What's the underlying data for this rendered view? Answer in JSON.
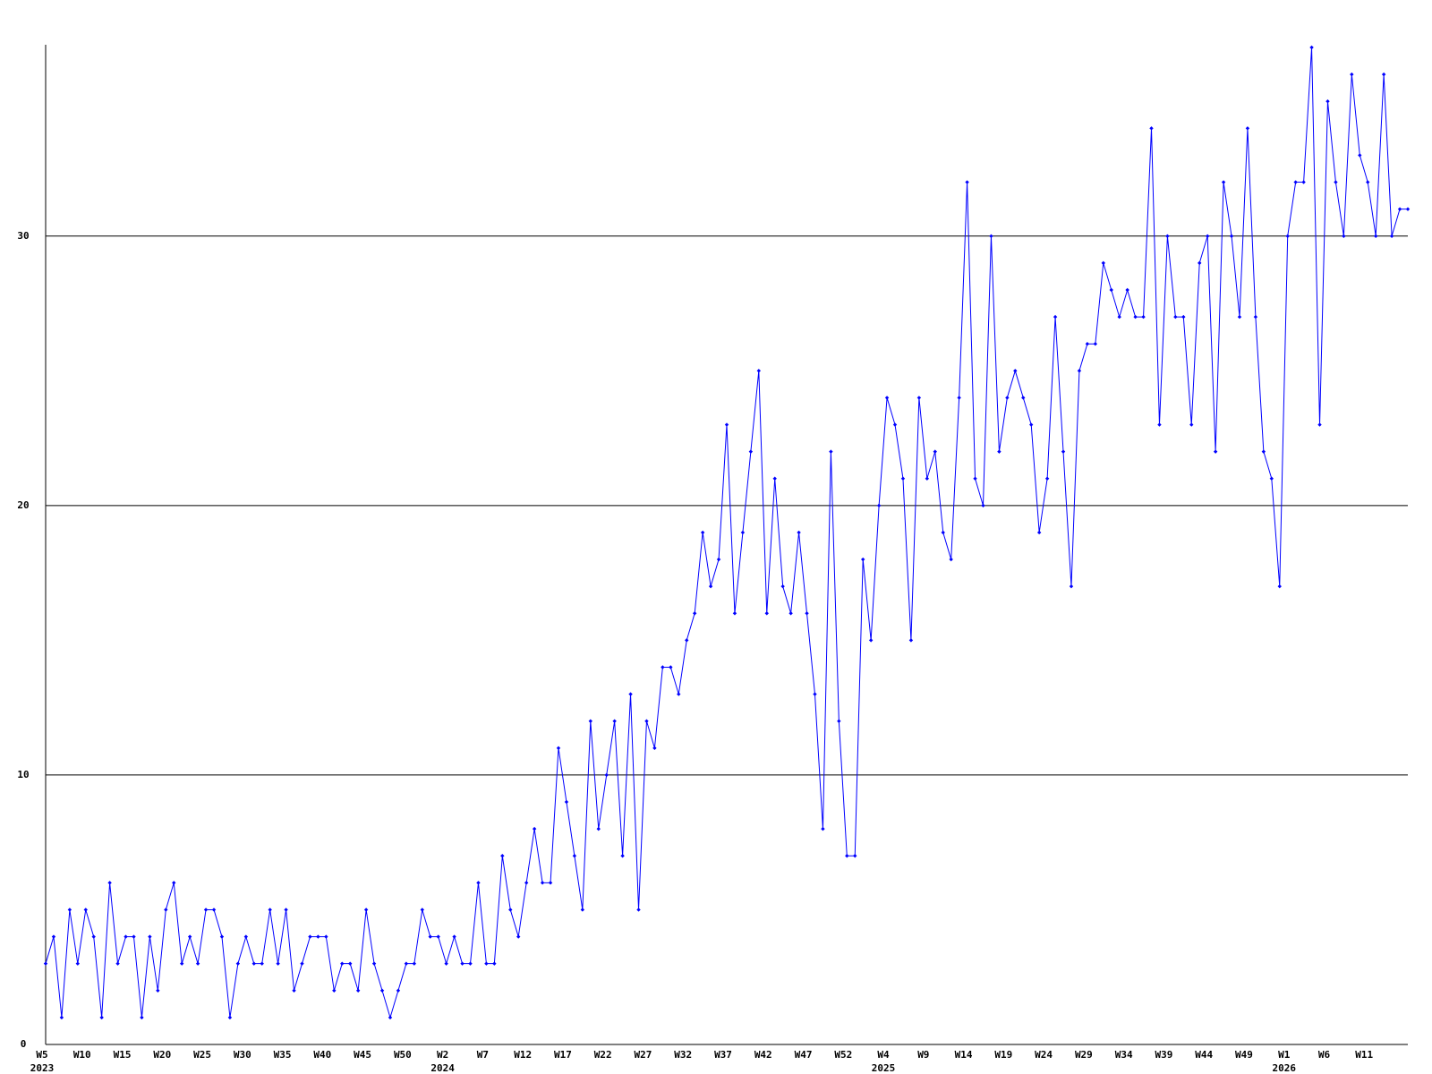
{
  "chart_data": {
    "type": "line",
    "categories": [
      "W5",
      null,
      null,
      null,
      null,
      "W10",
      null,
      null,
      null,
      null,
      "W15",
      null,
      null,
      null,
      null,
      "W20",
      null,
      null,
      null,
      null,
      "W25",
      null,
      null,
      null,
      null,
      "W30",
      null,
      null,
      null,
      null,
      "W35",
      null,
      null,
      null,
      null,
      "W40",
      null,
      null,
      null,
      null,
      "W45",
      null,
      null,
      null,
      null,
      "W50",
      null,
      null,
      null,
      null,
      "W2",
      null,
      null,
      null,
      null,
      "W7",
      null,
      null,
      null,
      null,
      "W12",
      null,
      null,
      null,
      null,
      "W17",
      null,
      null,
      null,
      null,
      "W22",
      null,
      null,
      null,
      null,
      "W27",
      null,
      null,
      null,
      null,
      "W32",
      null,
      null,
      null,
      null,
      "W37",
      null,
      null,
      null,
      null,
      "W42",
      null,
      null,
      null,
      null,
      "W47",
      null,
      null,
      null,
      null,
      "W52",
      null,
      null,
      null,
      null,
      "W4",
      null,
      null,
      null,
      null,
      "W9",
      null,
      null,
      null,
      null,
      "W14",
      null,
      null,
      null,
      null,
      "W19",
      null,
      null,
      null,
      null,
      "W24",
      null,
      null,
      null,
      null,
      "W29",
      null,
      null,
      null,
      null,
      "W34",
      null,
      null,
      null,
      null,
      "W39",
      null,
      null,
      null,
      null,
      "W44",
      null,
      null,
      null,
      null,
      "W49",
      null,
      null,
      null,
      null,
      "W1",
      null,
      null,
      null,
      null,
      "W6",
      null,
      null,
      null,
      null,
      "W11",
      null,
      null,
      null,
      null,
      null
    ],
    "years": [
      "2023",
      null,
      null,
      null,
      null,
      null,
      null,
      null,
      null,
      null,
      null,
      null,
      null,
      null,
      null,
      null,
      null,
      null,
      null,
      null,
      null,
      null,
      null,
      null,
      null,
      null,
      null,
      null,
      null,
      null,
      null,
      null,
      null,
      null,
      null,
      null,
      null,
      null,
      null,
      null,
      null,
      null,
      null,
      null,
      null,
      null,
      null,
      null,
      null,
      null,
      "2024",
      null,
      null,
      null,
      null,
      null,
      null,
      null,
      null,
      null,
      null,
      null,
      null,
      null,
      null,
      null,
      null,
      null,
      null,
      null,
      null,
      null,
      null,
      null,
      null,
      null,
      null,
      null,
      null,
      null,
      null,
      null,
      null,
      null,
      null,
      null,
      null,
      null,
      null,
      null,
      null,
      null,
      null,
      null,
      null,
      null,
      null,
      null,
      null,
      null,
      null,
      null,
      null,
      null,
      null,
      "2025",
      null,
      null,
      null,
      null,
      null,
      null,
      null,
      null,
      null,
      null,
      null,
      null,
      null,
      null,
      null,
      null,
      null,
      null,
      null,
      null,
      null,
      null,
      null,
      null,
      null,
      null,
      null,
      null,
      null,
      null,
      null,
      null,
      null,
      null,
      null,
      null,
      null,
      null,
      null,
      null,
      null,
      null,
      null,
      null,
      null,
      null,
      null,
      null,
      null,
      "2026",
      null,
      null,
      null,
      null,
      null,
      null,
      null,
      null,
      null,
      null,
      null,
      null,
      null,
      null,
      null
    ],
    "values": [
      3,
      4,
      1,
      5,
      3,
      5,
      4,
      1,
      6,
      3,
      4,
      4,
      1,
      4,
      2,
      5,
      6,
      3,
      4,
      3,
      5,
      5,
      4,
      1,
      3,
      4,
      3,
      3,
      5,
      3,
      5,
      2,
      3,
      4,
      4,
      4,
      2,
      3,
      3,
      2,
      5,
      3,
      2,
      1,
      2,
      3,
      3,
      5,
      4,
      4,
      3,
      4,
      3,
      3,
      6,
      3,
      3,
      7,
      5,
      4,
      6,
      8,
      6,
      6,
      11,
      9,
      7,
      5,
      12,
      8,
      10,
      12,
      7,
      13,
      5,
      12,
      11,
      14,
      14,
      13,
      15,
      16,
      19,
      17,
      18,
      23,
      16,
      19,
      22,
      25,
      16,
      21,
      17,
      16,
      19,
      16,
      13,
      8,
      22,
      12,
      7,
      7,
      18,
      15,
      20,
      24,
      23,
      21,
      15,
      24,
      21,
      22,
      19,
      18,
      24,
      32,
      21,
      20,
      30,
      22,
      24,
      25,
      24,
      23,
      19,
      21,
      27,
      22,
      17,
      25,
      26,
      26,
      29,
      28,
      27,
      28,
      27,
      27,
      34,
      23,
      30,
      27,
      27,
      23,
      29,
      30,
      22,
      32,
      30,
      27,
      34,
      27,
      22,
      21,
      17,
      30,
      32,
      32,
      37,
      23,
      35,
      32,
      30,
      36,
      33,
      32,
      30,
      36,
      30,
      31,
      31
    ],
    "color": "#0000ff",
    "ylim": [
      0,
      37.1
    ],
    "yticks": [
      0,
      10,
      20,
      30
    ],
    "grid": true
  }
}
